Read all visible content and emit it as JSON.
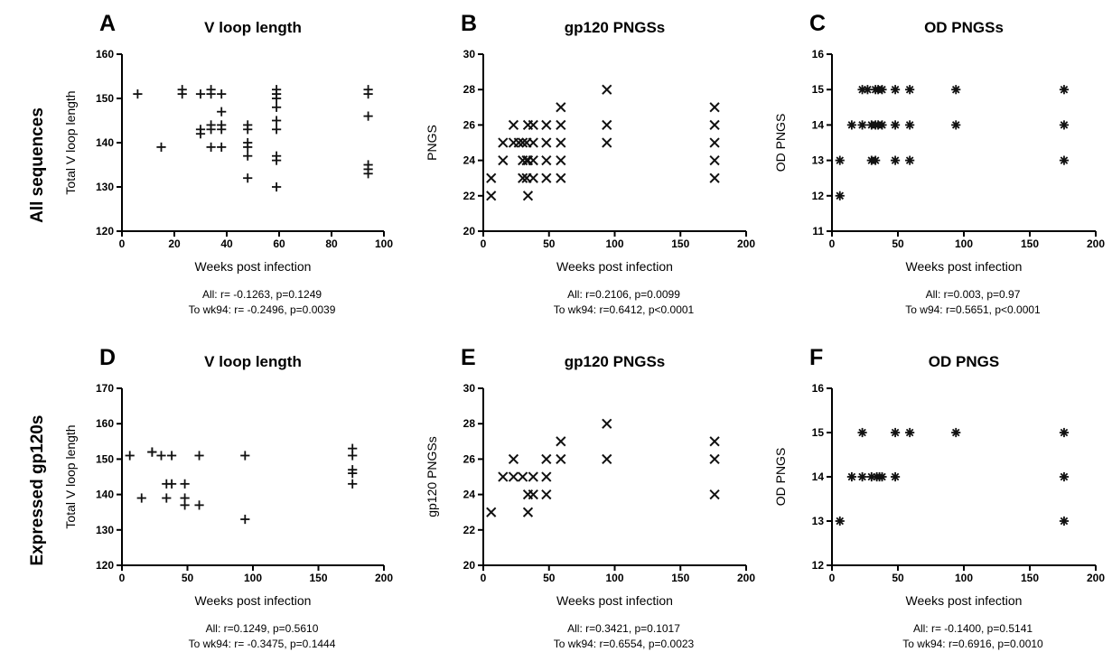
{
  "row_labels": [
    "All sequences",
    "Expressed gp120s"
  ],
  "chart_data": [
    {
      "type": "scatter",
      "marker": "plus",
      "letter": "A",
      "title": "V loop length",
      "xlabel": "Weeks post infection",
      "ylabel": "Total V loop length",
      "xlim": [
        0,
        100
      ],
      "ylim": [
        120,
        160
      ],
      "xticks": [
        0,
        20,
        40,
        60,
        80,
        100
      ],
      "yticks": [
        120,
        130,
        140,
        150,
        160
      ],
      "stats": [
        "All: r= -0.1263, p=0.1249",
        "To wk94: r= -0.2496, p=0.0039"
      ],
      "points": [
        [
          6,
          151
        ],
        [
          15,
          139
        ],
        [
          23,
          151
        ],
        [
          23,
          152
        ],
        [
          30,
          151
        ],
        [
          30,
          142
        ],
        [
          30,
          143
        ],
        [
          34,
          151
        ],
        [
          34,
          152
        ],
        [
          34,
          143
        ],
        [
          34,
          144
        ],
        [
          34,
          139
        ],
        [
          38,
          151
        ],
        [
          38,
          147
        ],
        [
          38,
          143
        ],
        [
          38,
          144
        ],
        [
          38,
          139
        ],
        [
          48,
          143
        ],
        [
          48,
          144
        ],
        [
          48,
          140
        ],
        [
          48,
          139
        ],
        [
          48,
          137
        ],
        [
          48,
          132
        ],
        [
          59,
          151
        ],
        [
          59,
          152
        ],
        [
          59,
          150
        ],
        [
          59,
          148
        ],
        [
          59,
          145
        ],
        [
          59,
          143
        ],
        [
          59,
          137
        ],
        [
          59,
          136
        ],
        [
          59,
          130
        ],
        [
          94,
          151
        ],
        [
          94,
          152
        ],
        [
          94,
          146
        ],
        [
          94,
          135
        ],
        [
          94,
          134
        ],
        [
          94,
          133
        ]
      ]
    },
    {
      "type": "scatter",
      "marker": "x",
      "letter": "B",
      "title": "gp120 PNGSs",
      "xlabel": "Weeks post infection",
      "ylabel": "PNGS",
      "xlim": [
        0,
        200
      ],
      "ylim": [
        20,
        30
      ],
      "xticks": [
        0,
        50,
        100,
        150,
        200
      ],
      "yticks": [
        20,
        22,
        24,
        26,
        28,
        30
      ],
      "stats": [
        "All: r=0.2106, p=0.0099",
        "To wk94: r=0.6412, p<0.0001"
      ],
      "points": [
        [
          6,
          23
        ],
        [
          6,
          22
        ],
        [
          15,
          25
        ],
        [
          15,
          24
        ],
        [
          23,
          26
        ],
        [
          23,
          25
        ],
        [
          27,
          25
        ],
        [
          30,
          25
        ],
        [
          30,
          24
        ],
        [
          30,
          23
        ],
        [
          33,
          25
        ],
        [
          33,
          24
        ],
        [
          33,
          23
        ],
        [
          34,
          26
        ],
        [
          34,
          24
        ],
        [
          34,
          22
        ],
        [
          38,
          26
        ],
        [
          38,
          25
        ],
        [
          38,
          24
        ],
        [
          38,
          23
        ],
        [
          48,
          26
        ],
        [
          48,
          25
        ],
        [
          48,
          24
        ],
        [
          48,
          23
        ],
        [
          59,
          27
        ],
        [
          59,
          26
        ],
        [
          59,
          25
        ],
        [
          59,
          24
        ],
        [
          59,
          23
        ],
        [
          94,
          28
        ],
        [
          94,
          26
        ],
        [
          94,
          25
        ],
        [
          176,
          27
        ],
        [
          176,
          26
        ],
        [
          176,
          25
        ],
        [
          176,
          24
        ],
        [
          176,
          23
        ]
      ]
    },
    {
      "type": "scatter",
      "marker": "asterisk",
      "letter": "C",
      "title": "OD PNGSs",
      "xlabel": "Weeks post infection",
      "ylabel": "OD PNGS",
      "xlim": [
        0,
        200
      ],
      "ylim": [
        11,
        16
      ],
      "xticks": [
        0,
        50,
        100,
        150,
        200
      ],
      "yticks": [
        11,
        12,
        13,
        14,
        15,
        16
      ],
      "stats": [
        "All: r=0.003, p=0.97",
        "To w94: r=0.5651, p<0.0001"
      ],
      "points": [
        [
          6,
          13
        ],
        [
          6,
          12
        ],
        [
          15,
          14
        ],
        [
          23,
          15
        ],
        [
          23,
          14
        ],
        [
          27,
          15
        ],
        [
          30,
          14
        ],
        [
          30,
          13
        ],
        [
          33,
          15
        ],
        [
          33,
          14
        ],
        [
          33,
          13
        ],
        [
          35,
          15
        ],
        [
          35,
          14
        ],
        [
          38,
          15
        ],
        [
          38,
          14
        ],
        [
          48,
          15
        ],
        [
          48,
          14
        ],
        [
          48,
          13
        ],
        [
          59,
          15
        ],
        [
          59,
          14
        ],
        [
          59,
          13
        ],
        [
          94,
          15
        ],
        [
          94,
          14
        ],
        [
          176,
          15
        ],
        [
          176,
          14
        ],
        [
          176,
          13
        ]
      ]
    },
    {
      "type": "scatter",
      "marker": "plus",
      "letter": "D",
      "title": "V loop length",
      "xlabel": "Weeks post infection",
      "ylabel": "Total V loop length",
      "xlim": [
        0,
        200
      ],
      "ylim": [
        120,
        170
      ],
      "xticks": [
        0,
        50,
        100,
        150,
        200
      ],
      "yticks": [
        120,
        130,
        140,
        150,
        160,
        170
      ],
      "stats": [
        "All: r=0.1249, p=0.5610",
        "To wk94: r= -0.3475, p=0.1444"
      ],
      "points": [
        [
          6,
          151
        ],
        [
          15,
          139
        ],
        [
          23,
          152
        ],
        [
          23,
          152
        ],
        [
          30,
          151
        ],
        [
          34,
          143
        ],
        [
          34,
          139
        ],
        [
          38,
          151
        ],
        [
          38,
          143
        ],
        [
          48,
          143
        ],
        [
          48,
          139
        ],
        [
          48,
          137
        ],
        [
          59,
          151
        ],
        [
          59,
          137
        ],
        [
          94,
          151
        ],
        [
          94,
          133
        ],
        [
          176,
          153
        ],
        [
          176,
          151
        ],
        [
          176,
          147
        ],
        [
          176,
          146
        ],
        [
          176,
          143
        ]
      ]
    },
    {
      "type": "scatter",
      "marker": "x",
      "letter": "E",
      "title": "gp120 PNGSs",
      "xlabel": "Weeks post infection",
      "ylabel": "gp120 PNGSs",
      "xlim": [
        0,
        200
      ],
      "ylim": [
        20,
        30
      ],
      "xticks": [
        0,
        50,
        100,
        150,
        200
      ],
      "yticks": [
        20,
        22,
        24,
        26,
        28,
        30
      ],
      "stats": [
        "All: r=0.3421, p=0.1017",
        "To wk94: r=0.6554, p=0.0023"
      ],
      "points": [
        [
          6,
          23
        ],
        [
          15,
          25
        ],
        [
          23,
          26
        ],
        [
          23,
          25
        ],
        [
          30,
          25
        ],
        [
          34,
          24
        ],
        [
          34,
          23
        ],
        [
          38,
          25
        ],
        [
          38,
          24
        ],
        [
          48,
          26
        ],
        [
          48,
          25
        ],
        [
          48,
          24
        ],
        [
          59,
          27
        ],
        [
          59,
          26
        ],
        [
          94,
          28
        ],
        [
          94,
          26
        ],
        [
          176,
          27
        ],
        [
          176,
          26
        ],
        [
          176,
          24
        ]
      ]
    },
    {
      "type": "scatter",
      "marker": "asterisk",
      "letter": "F",
      "title": "OD PNGS",
      "xlabel": "Weeks post infection",
      "ylabel": "OD PNGS",
      "xlim": [
        0,
        200
      ],
      "ylim": [
        12,
        16
      ],
      "xticks": [
        0,
        50,
        100,
        150,
        200
      ],
      "yticks": [
        12,
        13,
        14,
        15,
        16
      ],
      "stats": [
        "All: r= -0.1400, p=0.5141",
        "To wk94: r=0.6916, p=0.0010"
      ],
      "points": [
        [
          6,
          13
        ],
        [
          15,
          14
        ],
        [
          23,
          15
        ],
        [
          23,
          14
        ],
        [
          30,
          14
        ],
        [
          34,
          14
        ],
        [
          36,
          14
        ],
        [
          38,
          14
        ],
        [
          48,
          15
        ],
        [
          48,
          14
        ],
        [
          59,
          15
        ],
        [
          94,
          15
        ],
        [
          176,
          15
        ],
        [
          176,
          14
        ],
        [
          176,
          13
        ]
      ]
    }
  ]
}
